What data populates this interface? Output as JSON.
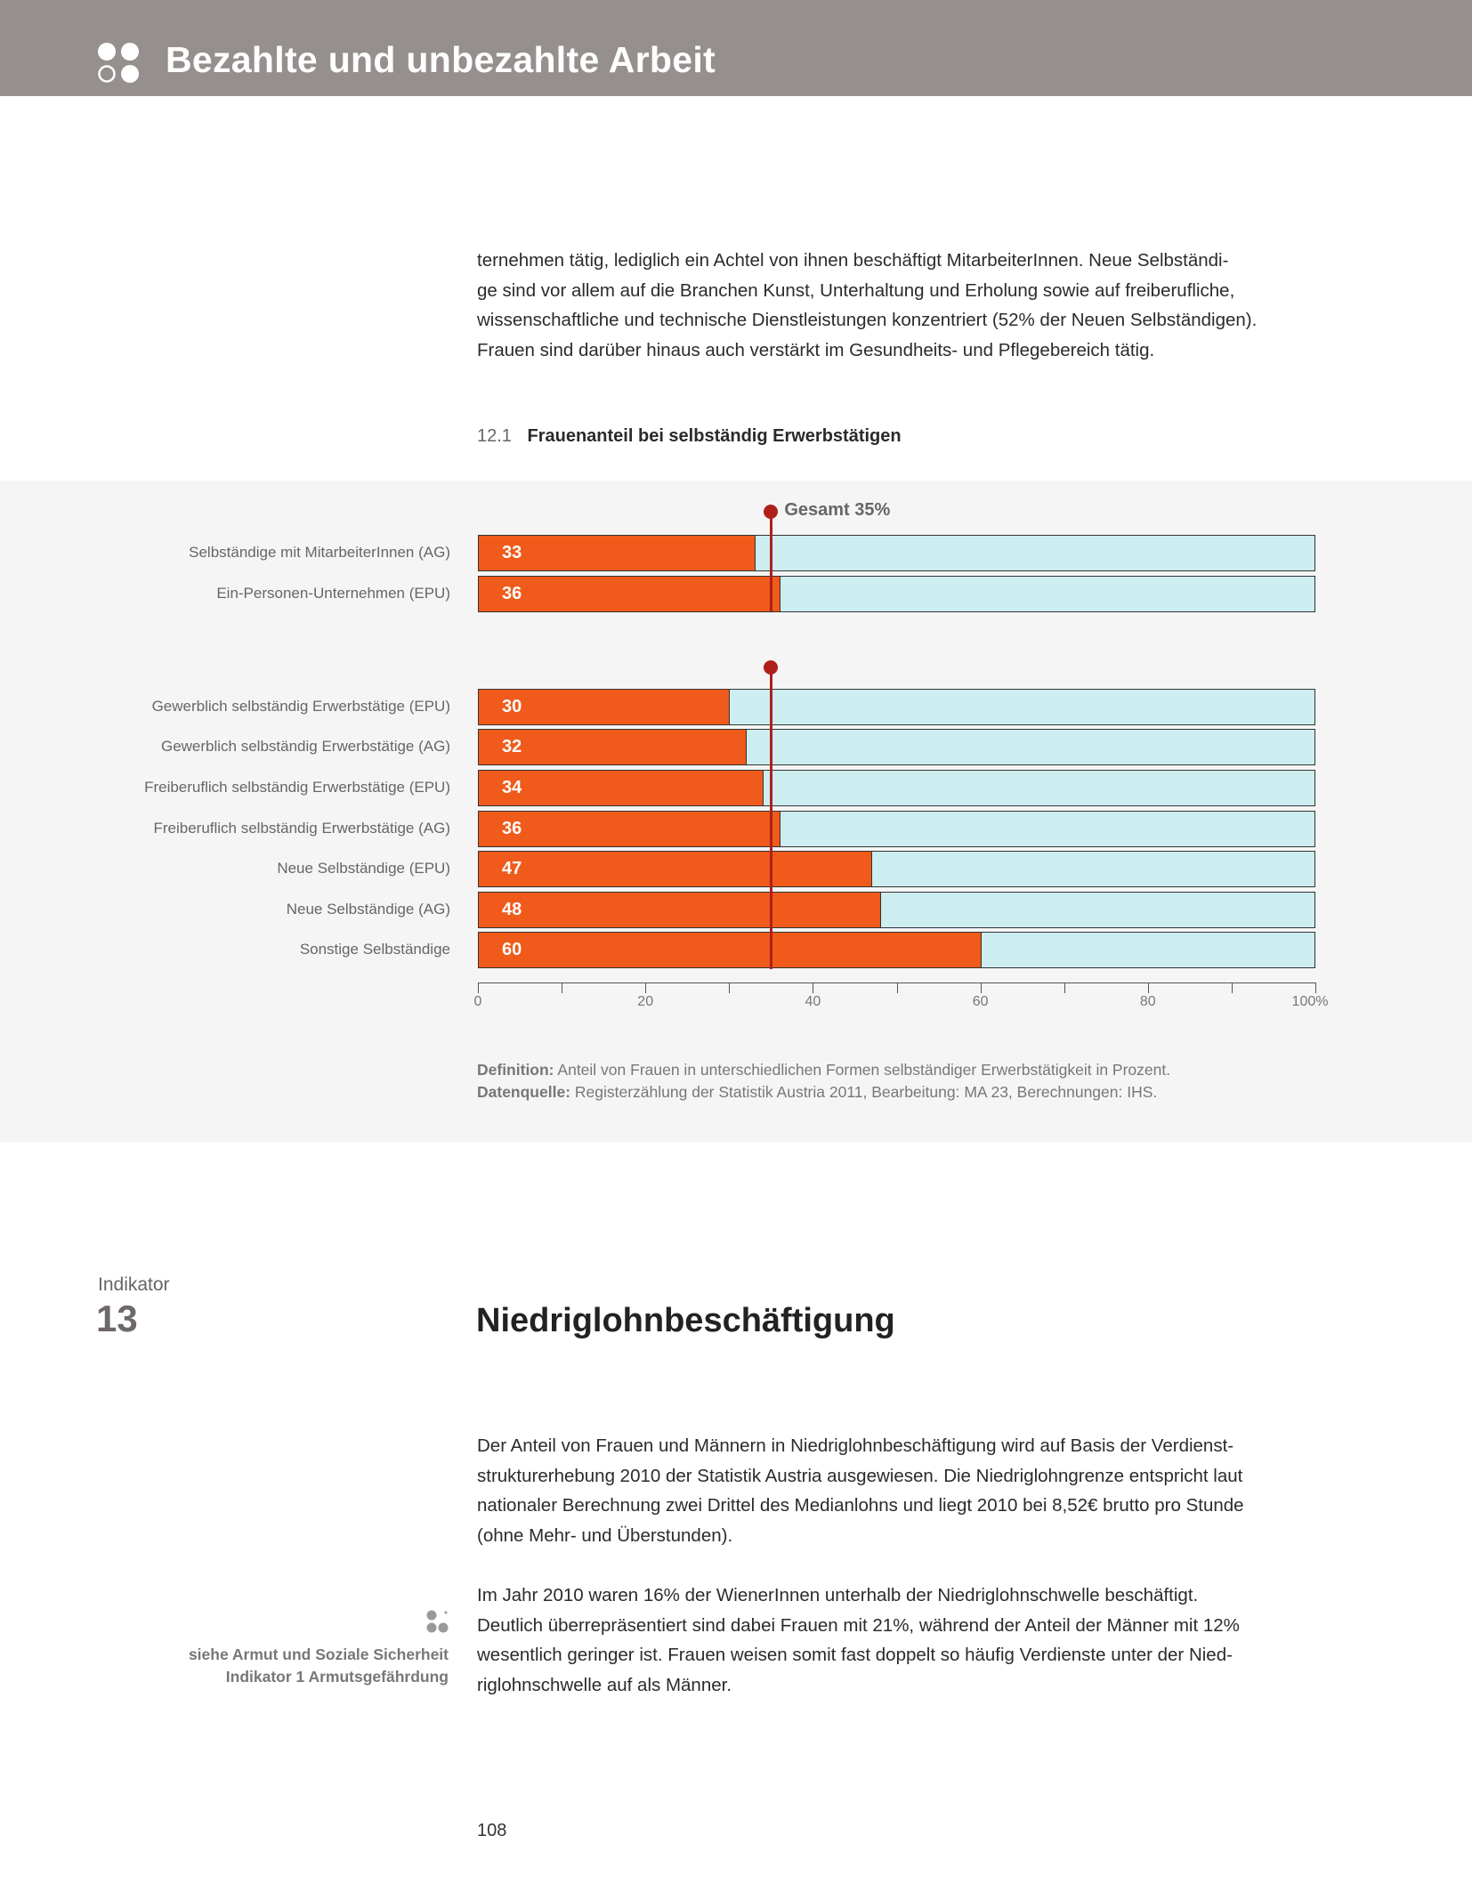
{
  "header": {
    "title": "Bezahlte und unbezahlte Arbeit",
    "icon": "four-dots-icon"
  },
  "intro_paragraph": [
    "ternehmen tätig, lediglich ein Achtel von ihnen beschäftigt MitarbeiterInnen. Neue Selbständi-",
    "ge sind vor allem auf die Branchen Kunst, Unterhaltung und Erholung sowie auf freiberufliche,",
    "wissenschaftliche und technische Dienstleistungen konzentriert (52% der Neuen Selbständigen).",
    "Frauen sind darüber hinaus auch verstärkt im Gesundheits- und Pflegebereich tätig."
  ],
  "chart_data": {
    "type": "bar",
    "orientation": "horizontal",
    "stacked_to": 100,
    "number": "12.1",
    "title": "Frauenanteil bei selbständig Erwerbstätigen",
    "reference": {
      "label": "Gesamt 35%",
      "value": 35
    },
    "groups": [
      {
        "categories": [
          "Selbständige mit MitarbeiterInnen (AG)",
          "Ein-Personen-Unternehmen (EPU)"
        ],
        "values": [
          33,
          36
        ]
      },
      {
        "categories": [
          "Gewerblich selbständig Erwerbstätige (EPU)",
          "Gewerblich selbständig Erwerbstätige (AG)",
          "Freiberuflich selbständig Erwerbstätige (EPU)",
          "Freiberuflich selbständig Erwerbstätige (AG)",
          "Neue Selbständige (EPU)",
          "Neue Selbständige (AG)",
          "Sonstige Selbständige"
        ],
        "values": [
          30,
          32,
          34,
          36,
          47,
          48,
          60
        ]
      }
    ],
    "xlim": [
      0,
      100
    ],
    "xticks": [
      "0",
      "20",
      "40",
      "60",
      "80",
      "100%"
    ],
    "colors": {
      "women": "#f05a1a",
      "rest": "#cdeef0",
      "reference": "#b0201a"
    }
  },
  "definition": {
    "label": "Definition:",
    "text": " Anteil von Frauen in unterschiedlichen Formen selbständiger Erwerbstätigkeit in Prozent."
  },
  "source": {
    "label": "Datenquelle:",
    "text": " Registerzählung der Statistik Austria 2011, Bearbeitung: MA 23, Berechnungen: IHS."
  },
  "indicator": {
    "label": "Indikator",
    "number": "13",
    "title": "Niedriglohnbeschäftigung"
  },
  "paragraph1": [
    "Der Anteil von Frauen und Männern in Niedriglohnbeschäftigung wird auf Basis der Verdienst-",
    "strukturerhebung 2010 der Statistik Austria ausgewiesen. Die Niedriglohngrenze entspricht laut",
    "nationaler Berechnung zwei Drittel des Medianlohns und liegt 2010 bei 8,52€ brutto pro Stunde",
    "(ohne Mehr- und Überstunden)."
  ],
  "paragraph2": [
    "Im Jahr 2010 waren 16% der WienerInnen unterhalb der Niedriglohnschwelle beschäftigt.",
    "Deutlich überrepräsentiert sind dabei Frauen mit 21%, während der Anteil der Männer mit 12%",
    "wesentlich geringer ist. Frauen weisen somit fast doppelt so häufig Verdienste unter der Nied-",
    "riglohnschwelle auf als Männer."
  ],
  "sidenote": [
    "siehe Armut und Soziale Sicherheit",
    "Indikator 1 Armutsgefährdung"
  ],
  "page_number": "108"
}
